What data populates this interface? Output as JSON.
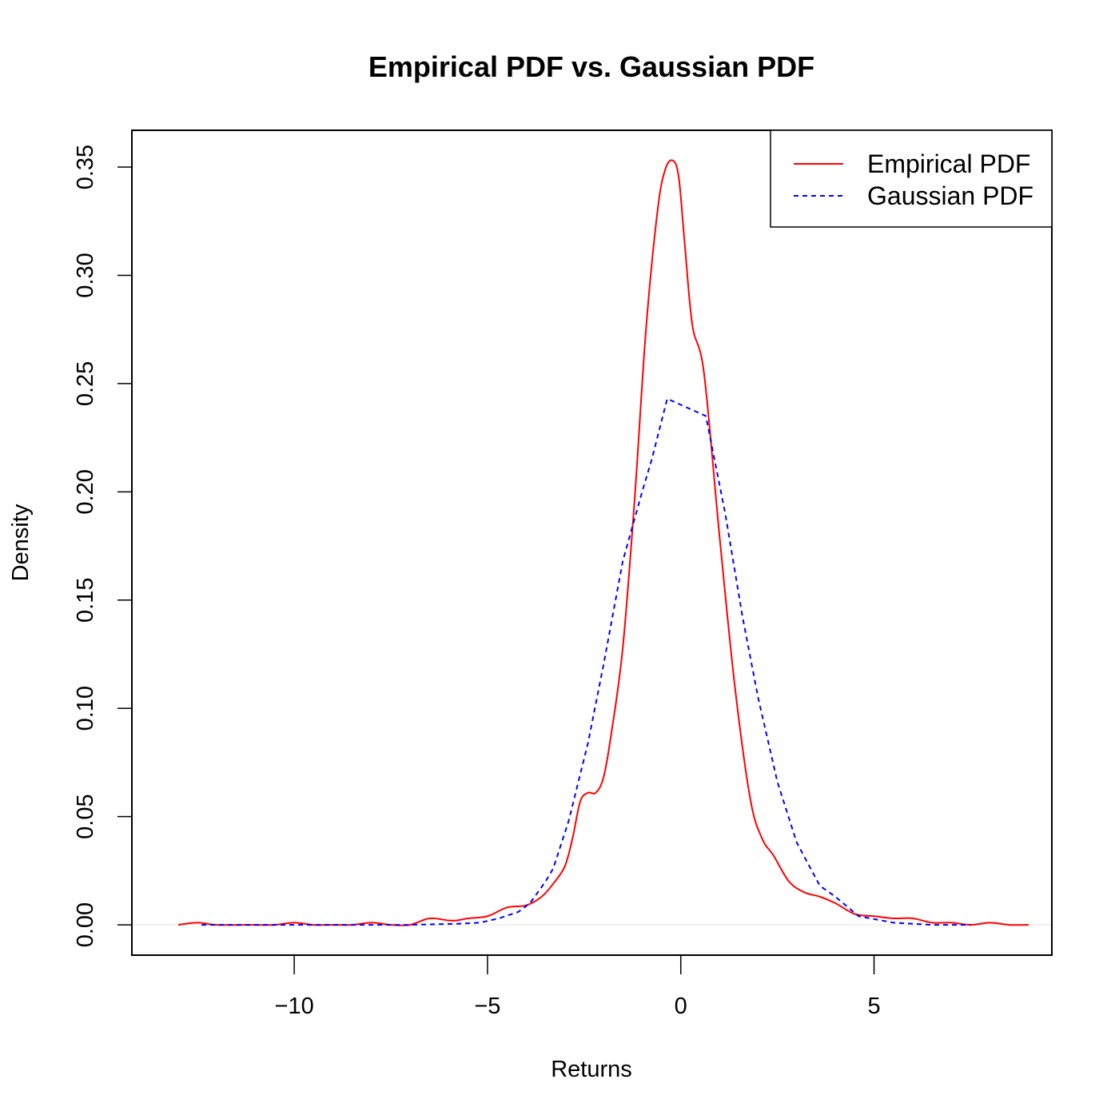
{
  "chart_data": {
    "type": "line",
    "title": "Empirical PDF vs. Gaussian PDF",
    "xlabel": "Returns",
    "ylabel": "Density",
    "xlim": [
      -14.2,
      9.6
    ],
    "ylim": [
      -0.014,
      0.367
    ],
    "x_ticks": [
      -10,
      -5,
      0,
      5
    ],
    "x_tick_labels": [
      "−10",
      "−5",
      "0",
      "5"
    ],
    "y_ticks": [
      0.0,
      0.05,
      0.1,
      0.15,
      0.2,
      0.25,
      0.3,
      0.35
    ],
    "y_tick_labels": [
      "0.00",
      "0.05",
      "0.10",
      "0.15",
      "0.20",
      "0.25",
      "0.30",
      "0.35"
    ],
    "zero_line": true,
    "grid": false,
    "legend": {
      "position": "top-right",
      "entries": [
        "Empirical PDF",
        "Gaussian PDF"
      ]
    },
    "series": [
      {
        "name": "Empirical PDF",
        "color": "#ff0000",
        "style": "solid",
        "smooth": true,
        "x": [
          -13.0,
          -12.5,
          -12.0,
          -11.0,
          -10.5,
          -10.0,
          -9.5,
          -9.0,
          -8.5,
          -8.0,
          -7.5,
          -7.0,
          -6.5,
          -6.0,
          -5.8,
          -5.5,
          -5.0,
          -4.5,
          -4.0,
          -3.6,
          -3.3,
          -3.0,
          -2.8,
          -2.6,
          -2.4,
          -2.2,
          -2.0,
          -1.8,
          -1.5,
          -1.2,
          -0.9,
          -0.6,
          -0.4,
          -0.2,
          -0.05,
          0.1,
          0.3,
          0.6,
          1.0,
          1.4,
          1.8,
          2.1,
          2.4,
          2.8,
          3.2,
          3.6,
          4.0,
          4.5,
          5.0,
          5.5,
          6.0,
          6.5,
          7.0,
          7.5,
          8.0,
          8.5,
          9.0
        ],
        "y": [
          0.0,
          0.001,
          0.0,
          0.0,
          0.0,
          0.001,
          0.0,
          0.0,
          0.0,
          0.001,
          0.0,
          0.0,
          0.003,
          0.002,
          0.002,
          0.003,
          0.004,
          0.008,
          0.009,
          0.013,
          0.019,
          0.027,
          0.04,
          0.057,
          0.061,
          0.061,
          0.068,
          0.088,
          0.128,
          0.195,
          0.275,
          0.33,
          0.349,
          0.353,
          0.345,
          0.315,
          0.277,
          0.255,
          0.18,
          0.11,
          0.058,
          0.04,
          0.032,
          0.02,
          0.015,
          0.013,
          0.01,
          0.005,
          0.004,
          0.003,
          0.003,
          0.001,
          0.001,
          0.0,
          0.001,
          0.0,
          0.0
        ]
      },
      {
        "name": "Gaussian PDF",
        "color": "#0000ff",
        "style": "dashed",
        "smooth": false,
        "x": [
          -12.4,
          -11.5,
          -10.0,
          -8.5,
          -7.0,
          -5.8,
          -5.2,
          -4.7,
          -4.2,
          -3.9,
          -3.7,
          -3.5,
          -3.3,
          -2.9,
          -2.4,
          -2.0,
          -1.5,
          -1.0,
          -0.75,
          -0.35,
          0.65,
          1.15,
          1.6,
          2.0,
          2.5,
          3.0,
          3.6,
          4.0,
          4.6,
          5.5,
          6.5,
          7.5
        ],
        "y": [
          0.0,
          0.0,
          0.0,
          0.0,
          0.0,
          0.0005,
          0.001,
          0.003,
          0.006,
          0.01,
          0.015,
          0.02,
          0.026,
          0.048,
          0.084,
          0.12,
          0.168,
          0.2,
          0.215,
          0.243,
          0.235,
          0.19,
          0.142,
          0.105,
          0.066,
          0.038,
          0.018,
          0.013,
          0.004,
          0.001,
          0.0,
          0.0
        ]
      }
    ]
  }
}
